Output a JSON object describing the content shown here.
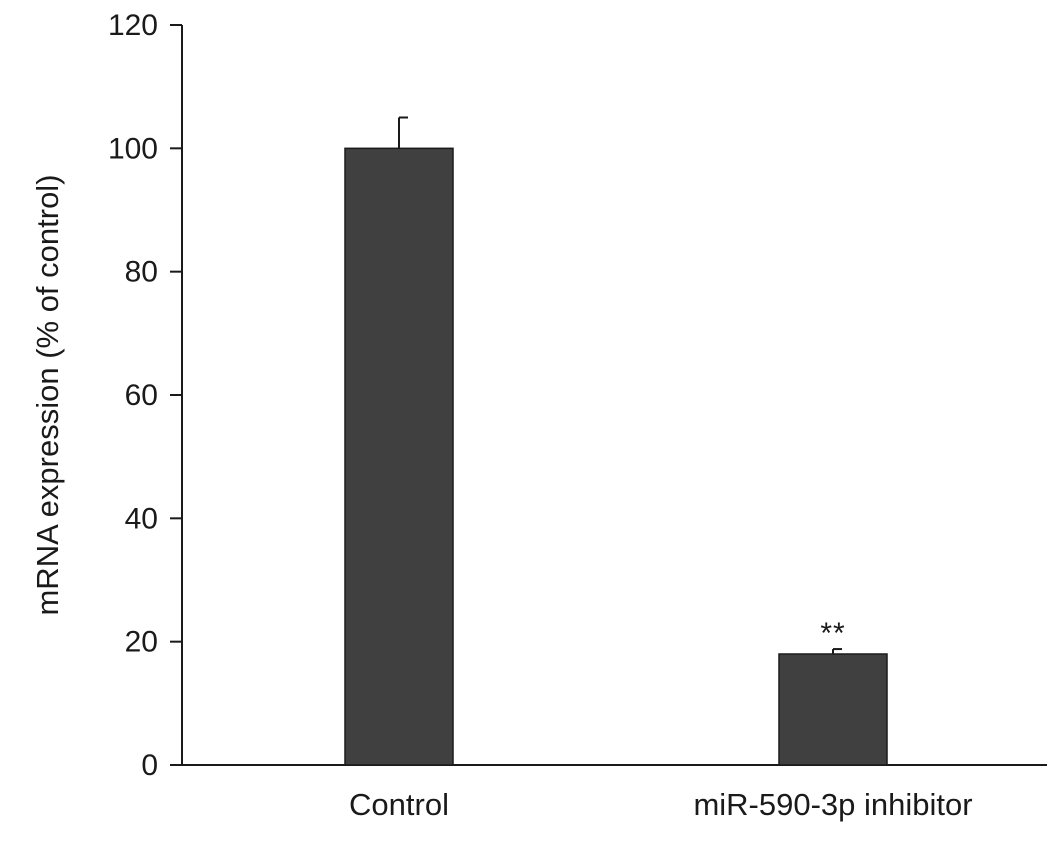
{
  "chart_data": {
    "type": "bar",
    "title": "",
    "xlabel": "",
    "ylabel": "mRNA expression (% of control)",
    "ylim": [
      0,
      120
    ],
    "yticks": [
      0,
      20,
      40,
      60,
      80,
      100,
      120
    ],
    "grid": false,
    "categories": [
      "Control",
      "miR-590-3p inhibitor"
    ],
    "values": [
      100,
      18
    ],
    "errors": [
      5,
      0.8
    ],
    "annotations": [
      "",
      "**"
    ],
    "bar_color": "#404040",
    "axis_color": "#1a1a1a"
  }
}
